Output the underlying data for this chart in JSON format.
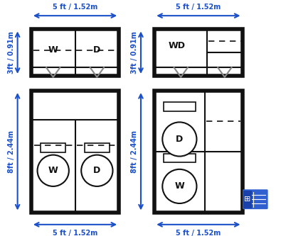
{
  "blue": "#1b50c8",
  "dark": "#111111",
  "gray": "#888888",
  "white": "#ffffff",
  "dim_label_top1": "5 ft / 1.52m",
  "dim_label_top2": "5 ft / 1.52m",
  "dim_label_left1": "3ft / 0.91m",
  "dim_label_left2": "8ft / 2.44m",
  "dim_label_bot1": "5 ft / 1.52m",
  "dim_label_bot2": "5 ft / 1.52m",
  "dim_label_left3": "3ft / 0.91m",
  "dim_label_left4": "8ft / 2.44m"
}
